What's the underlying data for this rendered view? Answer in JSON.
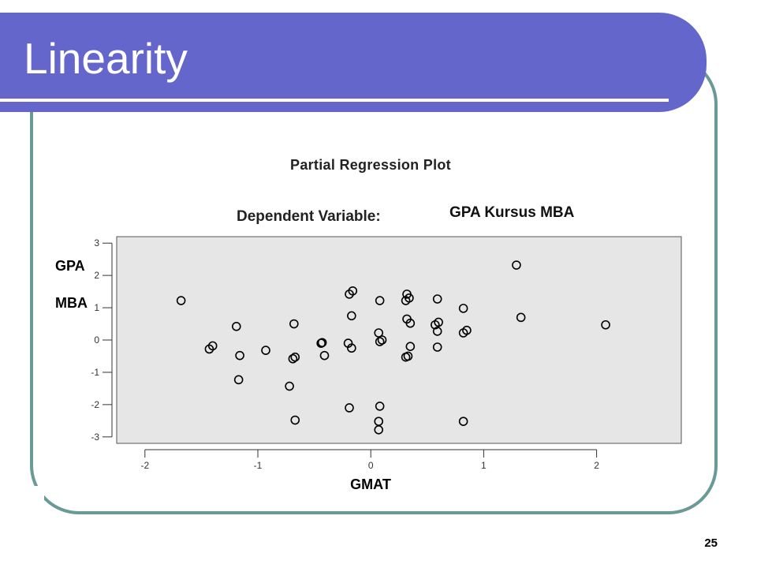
{
  "slide": {
    "title": "Linearity",
    "page_number": "25"
  },
  "chart_data": {
    "type": "scatter",
    "title": "Partial Regression Plot",
    "subtitle_label": "Dependent Variable:",
    "subtitle_value": "GPA Kursus MBA",
    "xlabel": "GMAT",
    "ylabel": "GPA\n\nMBA",
    "xlim": [
      -2.25,
      2.75
    ],
    "ylim": [
      -3.2,
      3.2
    ],
    "x_ticks": [
      -2,
      -1,
      0,
      1,
      2
    ],
    "y_ticks": [
      -3,
      -2,
      -1,
      0,
      1,
      2,
      3
    ],
    "grid": false,
    "plot_background": "#e6e6e6",
    "marker_color": "#000000",
    "series": [
      {
        "points": [
          [
            -1.68,
            1.22
          ],
          [
            -1.43,
            -0.28
          ],
          [
            -1.4,
            -0.18
          ],
          [
            -1.19,
            0.42
          ],
          [
            -1.16,
            -0.48
          ],
          [
            -1.17,
            -1.23
          ],
          [
            -0.93,
            -0.32
          ],
          [
            -0.68,
            0.5
          ],
          [
            -0.69,
            -0.58
          ],
          [
            -0.67,
            -0.53
          ],
          [
            -0.72,
            -1.43
          ],
          [
            -0.67,
            -2.48
          ],
          [
            -0.44,
            -0.1
          ],
          [
            -0.43,
            -0.08
          ],
          [
            -0.41,
            -0.48
          ],
          [
            -0.19,
            1.42
          ],
          [
            -0.16,
            1.52
          ],
          [
            -0.17,
            0.75
          ],
          [
            -0.2,
            -0.1
          ],
          [
            -0.17,
            -0.25
          ],
          [
            -0.19,
            -2.1
          ],
          [
            0.08,
            1.22
          ],
          [
            0.07,
            0.22
          ],
          [
            0.08,
            -0.05
          ],
          [
            0.1,
            0.0
          ],
          [
            0.08,
            -2.05
          ],
          [
            0.07,
            -2.52
          ],
          [
            0.07,
            -2.78
          ],
          [
            0.32,
            1.42
          ],
          [
            0.31,
            1.22
          ],
          [
            0.34,
            1.3
          ],
          [
            0.32,
            0.65
          ],
          [
            0.35,
            0.52
          ],
          [
            0.35,
            -0.2
          ],
          [
            0.31,
            -0.53
          ],
          [
            0.33,
            -0.5
          ],
          [
            0.59,
            1.27
          ],
          [
            0.57,
            0.47
          ],
          [
            0.6,
            0.55
          ],
          [
            0.59,
            0.27
          ],
          [
            0.59,
            -0.22
          ],
          [
            0.82,
            0.98
          ],
          [
            0.82,
            0.22
          ],
          [
            0.85,
            0.3
          ],
          [
            0.82,
            -2.52
          ],
          [
            1.29,
            2.32
          ],
          [
            1.33,
            0.7
          ],
          [
            2.08,
            0.47
          ]
        ]
      }
    ]
  }
}
